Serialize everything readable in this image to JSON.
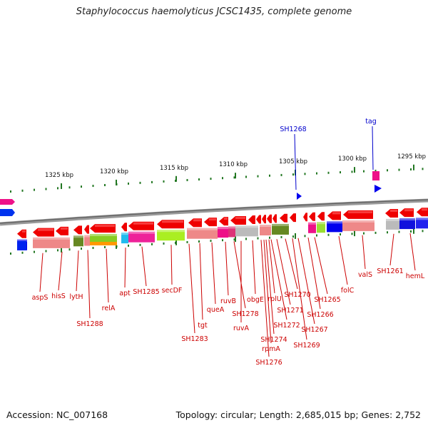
{
  "title": "Staphylococcus haemolyticus JCSC1435, complete genome",
  "accession": "Accession: NC_007168",
  "summary": {
    "topology": "circular",
    "length": "2,685,015 bp",
    "genes": "2,752",
    "text": "Topology: circular; Length: 2,685,015 bp; Genes: 2,752"
  },
  "colors": {
    "gene_red": "#ee0000",
    "label_red": "#cc0000",
    "label_blue": "#0000cc",
    "tick_green": "#227722",
    "backbone": "#888888",
    "cog_pink": "#ee1188",
    "cog_blue": "#0000ee",
    "cog_green": "#88cc22",
    "cog_olive": "#668822",
    "cog_gray": "#bbbbbb",
    "cog_salmon": "#ee8888",
    "cog_orange": "#ff9900",
    "cog_cyan": "#22bbee"
  },
  "scale_labels": [
    "1325 kbp",
    "1320 kbp",
    "1315 kbp",
    "1310 kbp",
    "1305 kbp",
    "1300 kbp",
    "1295 kbp"
  ],
  "reverse_genes": [
    "aspS",
    "hisS",
    "lytH",
    "SH1288",
    "relA",
    "apt",
    "SH1285",
    "secDF",
    "SH1283",
    "tgt",
    "queA",
    "ruvB",
    "SH1278",
    "ruvA",
    "obgE",
    "SH1276",
    "rpmA",
    "SH1274",
    "rplU",
    "SH1272",
    "SH1271",
    "SH1270",
    "SH1269",
    "SH1267",
    "SH1266",
    "SH1265",
    "folC",
    "valS",
    "SH1261",
    "hemL"
  ],
  "forward_genes": [
    "SH1268",
    "tag"
  ]
}
